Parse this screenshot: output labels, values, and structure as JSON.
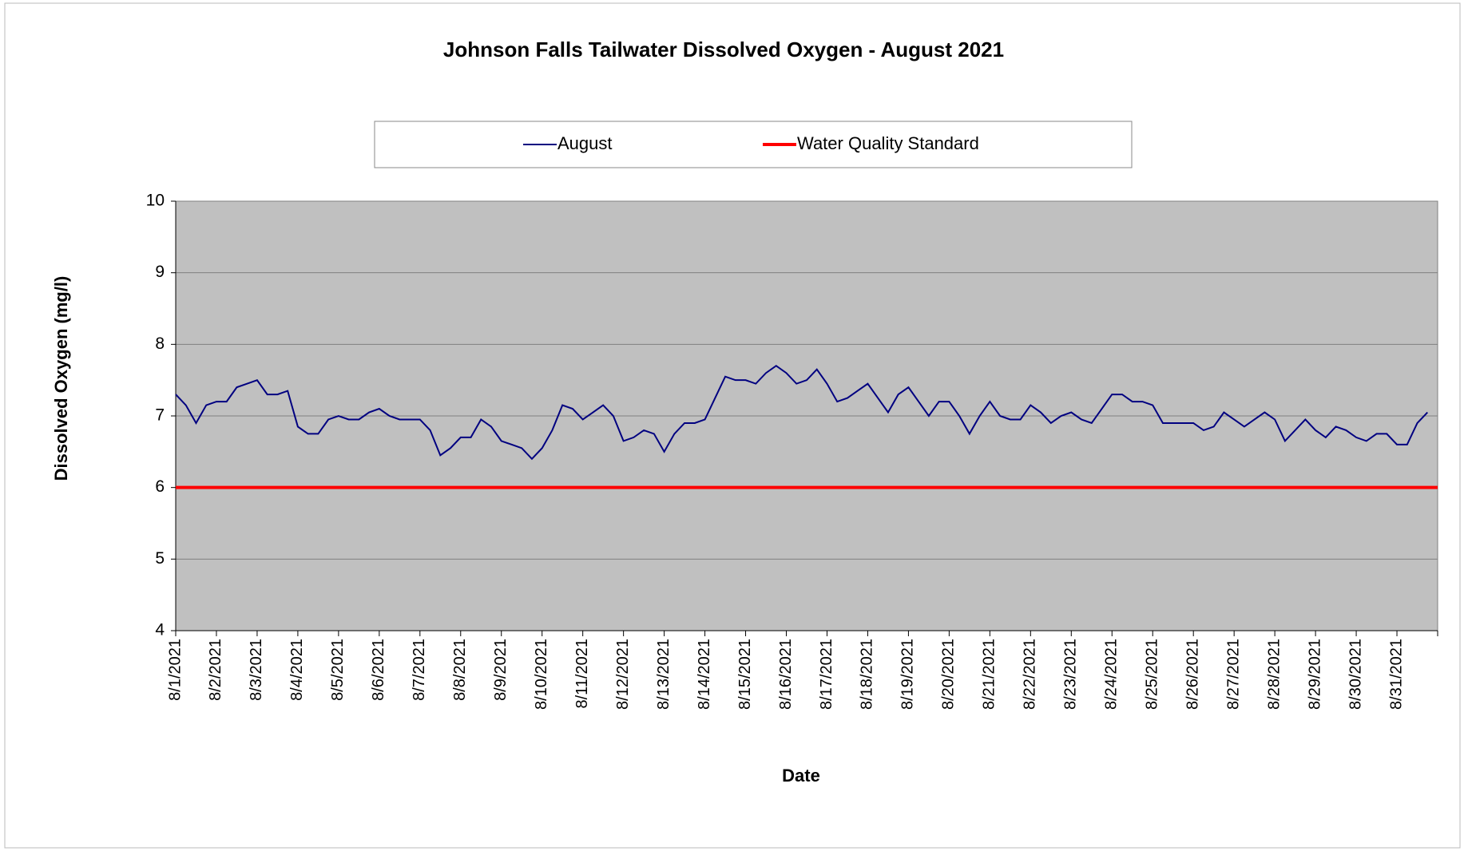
{
  "chart_data": {
    "type": "line",
    "title": "Johnson Falls Tailwater Dissolved Oxygen - August 2021",
    "x_label": "Date",
    "y_label": "Dissolved Oxygen (mg/l)",
    "categories": [
      "8/1/2021",
      null,
      null,
      null,
      "8/2/2021",
      null,
      null,
      null,
      "8/3/2021",
      null,
      null,
      null,
      "8/4/2021",
      null,
      null,
      null,
      "8/5/2021",
      null,
      null,
      null,
      "8/6/2021",
      null,
      null,
      null,
      "8/7/2021",
      null,
      null,
      null,
      "8/8/2021",
      null,
      null,
      null,
      "8/9/2021",
      null,
      null,
      null,
      "8/10/2021",
      null,
      null,
      null,
      "8/11/2021",
      null,
      null,
      null,
      "8/12/2021",
      null,
      null,
      null,
      "8/13/2021",
      null,
      null,
      null,
      "8/14/2021",
      null,
      null,
      null,
      "8/15/2021",
      null,
      null,
      null,
      "8/16/2021",
      null,
      null,
      null,
      "8/17/2021",
      null,
      null,
      null,
      "8/18/2021",
      null,
      null,
      null,
      "8/19/2021",
      null,
      null,
      null,
      "8/20/2021",
      null,
      null,
      null,
      "8/21/2021",
      null,
      null,
      null,
      "8/22/2021",
      null,
      null,
      null,
      "8/23/2021",
      null,
      null,
      null,
      "8/24/2021",
      null,
      null,
      null,
      "8/25/2021",
      null,
      null,
      null,
      "8/26/2021",
      null,
      null,
      null,
      "8/27/2021",
      null,
      null,
      null,
      "8/28/2021",
      null,
      null,
      null,
      "8/29/2021",
      null,
      null,
      null,
      "8/30/2021",
      null,
      null,
      null,
      "8/31/2021",
      null,
      null,
      null
    ],
    "series": [
      {
        "name": "August",
        "color": "#000080",
        "values": [
          7.3,
          7.15,
          6.9,
          7.15,
          7.2,
          7.2,
          7.4,
          7.45,
          7.5,
          7.3,
          7.3,
          7.35,
          6.85,
          6.75,
          6.75,
          6.95,
          7.0,
          6.95,
          6.95,
          7.05,
          7.1,
          7.0,
          6.95,
          6.95,
          6.95,
          6.8,
          6.45,
          6.55,
          6.7,
          6.7,
          6.95,
          6.85,
          6.65,
          6.6,
          6.55,
          6.4,
          6.55,
          6.8,
          7.15,
          7.1,
          6.95,
          7.05,
          7.15,
          7.0,
          6.65,
          6.7,
          6.8,
          6.75,
          6.5,
          6.75,
          6.9,
          6.9,
          6.95,
          7.25,
          7.55,
          7.5,
          7.5,
          7.45,
          7.6,
          7.7,
          7.6,
          7.45,
          7.5,
          7.65,
          7.45,
          7.2,
          7.25,
          7.35,
          7.45,
          7.25,
          7.05,
          7.3,
          7.4,
          7.2,
          7.0,
          7.2,
          7.2,
          7.0,
          6.75,
          7.0,
          7.2,
          7.0,
          6.95,
          6.95,
          7.15,
          7.05,
          6.9,
          7.0,
          7.05,
          6.95,
          6.9,
          7.1,
          7.3,
          7.3,
          7.2,
          7.2,
          7.15,
          6.9,
          6.9,
          6.9,
          6.9,
          6.8,
          6.85,
          7.05,
          6.95,
          6.85,
          6.95,
          7.05,
          6.95,
          6.65,
          6.8,
          6.95,
          6.8,
          6.7,
          6.85,
          6.8,
          6.7,
          6.65,
          6.75,
          6.75,
          6.6,
          6.6,
          6.9,
          7.05
        ]
      }
    ],
    "reference_lines": [
      {
        "name": "Water Quality Standard",
        "color": "#ff0000",
        "value": 6
      }
    ],
    "ylim": [
      4,
      10
    ],
    "yticks": [
      4,
      5,
      6,
      7,
      8,
      9,
      10
    ],
    "grid": true,
    "legend": "top"
  }
}
